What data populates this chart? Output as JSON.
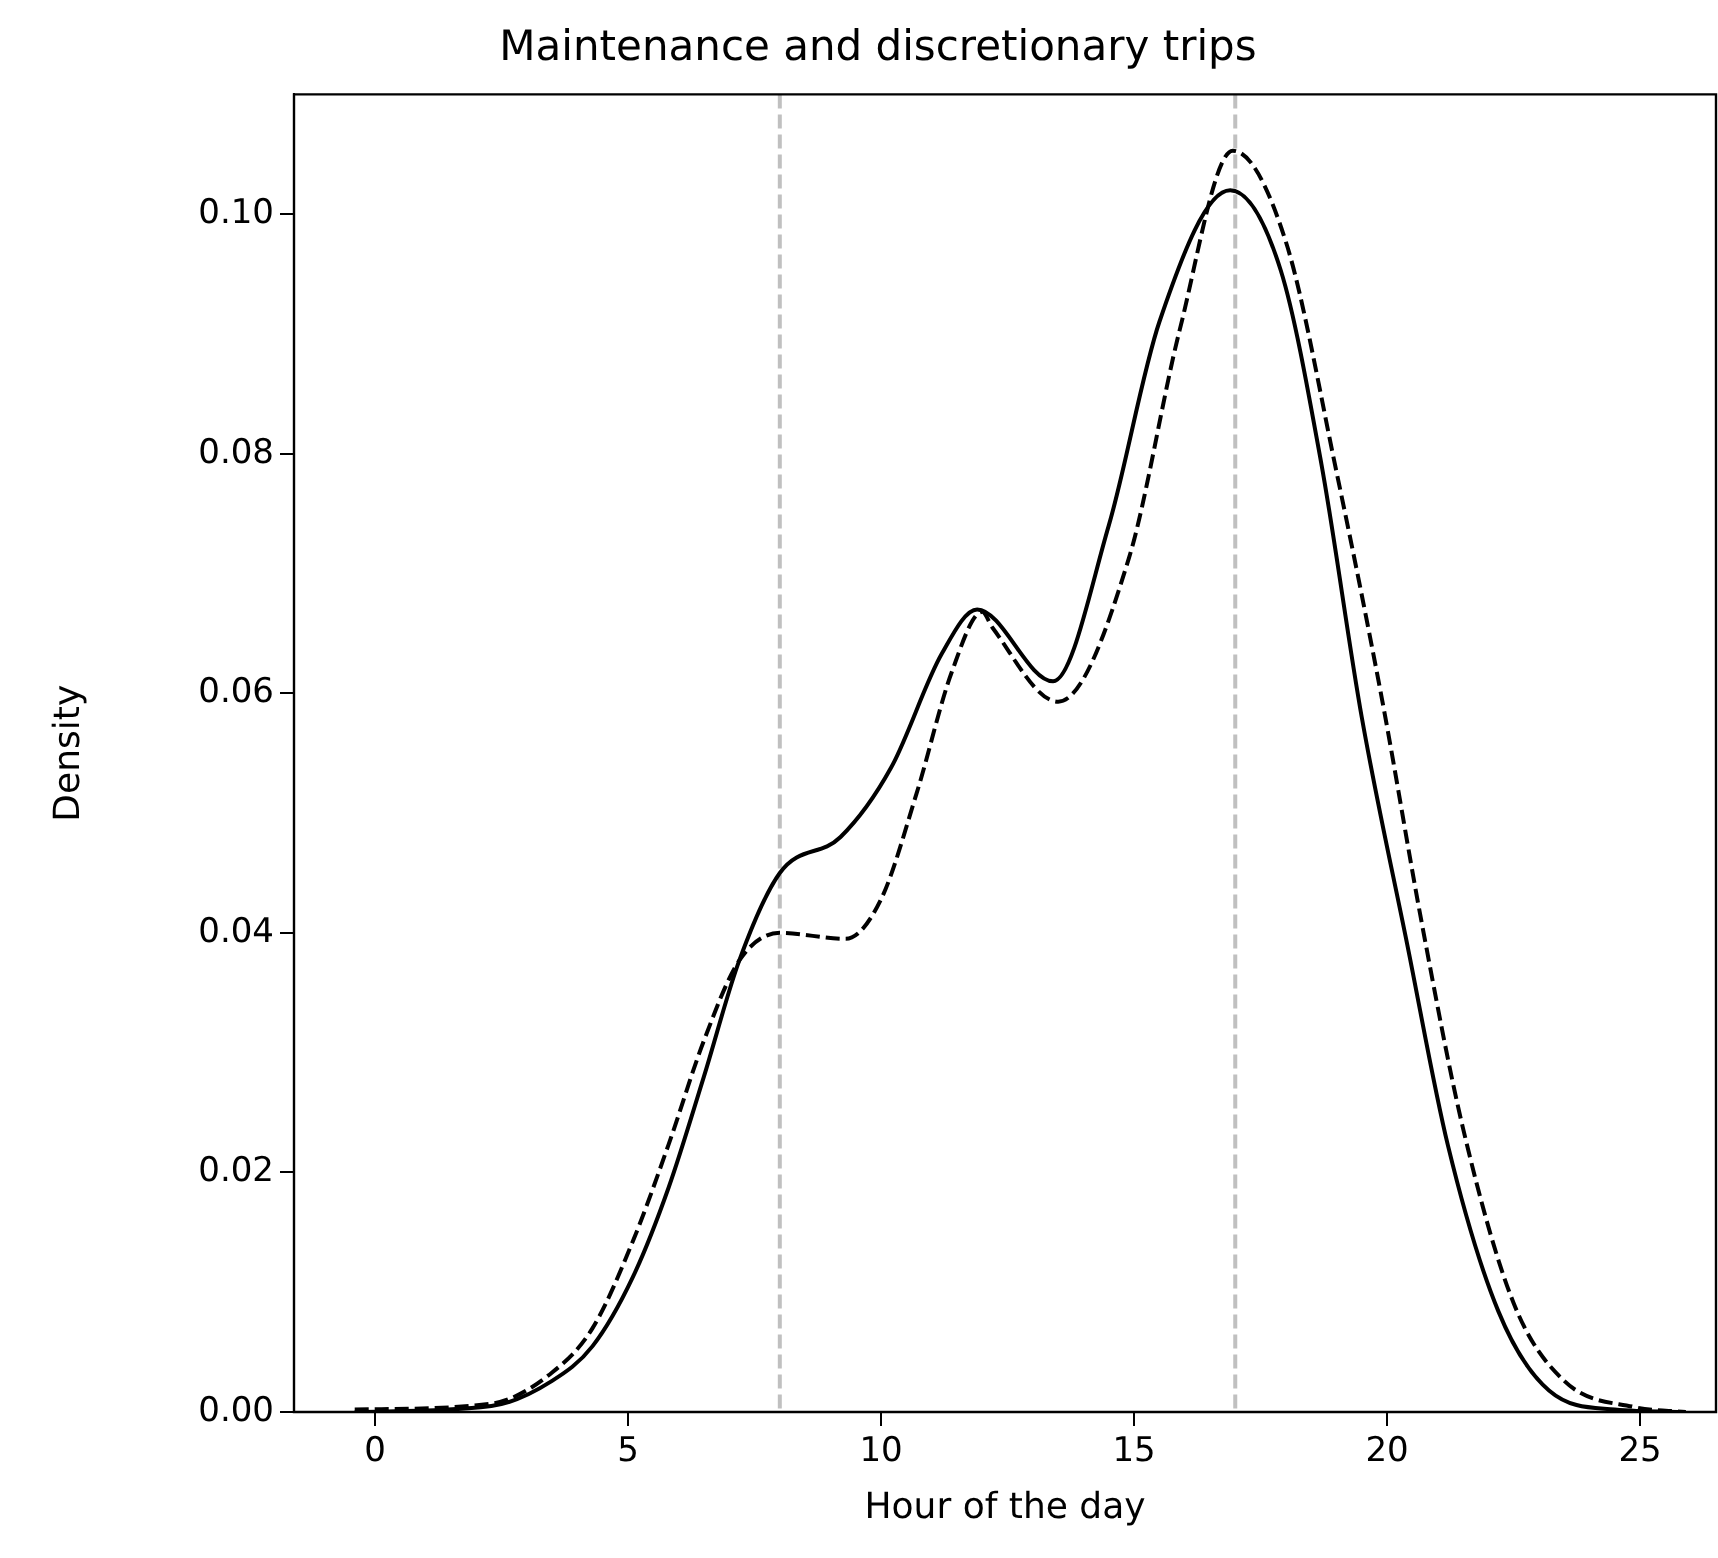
{
  "chart_data": {
    "type": "line",
    "title": "Maintenance and discretionary trips",
    "xlabel": "Hour of the day",
    "ylabel": "Density",
    "xlim": [
      -1.6,
      26.5
    ],
    "xticks": [
      0,
      5,
      10,
      15,
      20,
      25
    ],
    "ylim": [
      0,
      0.11
    ],
    "yticks": [
      {
        "value": 0,
        "label": "0.00"
      },
      {
        "value": 0.02,
        "label": "0.02"
      },
      {
        "value": 0.04,
        "label": "0.04"
      },
      {
        "value": 0.06,
        "label": "0.06"
      },
      {
        "value": 0.08,
        "label": "0.08"
      },
      {
        "value": 0.1,
        "label": "0.10"
      }
    ],
    "grid": false,
    "legend": false,
    "marker": "none",
    "ref_lines": [
      {
        "axis": "x",
        "value": 8,
        "color": "#c0c0c0",
        "line_style": "dashed"
      },
      {
        "axis": "x",
        "value": 17,
        "color": "#c0c0c0",
        "line_style": "dashed"
      }
    ],
    "series": [
      {
        "color": "#000000",
        "line_style": "solid",
        "x": [
          -0.4,
          2.3,
          3.5,
          4.3,
          5.1,
          5.8,
          6.5,
          7.2,
          8.0,
          9.2,
          10.2,
          11.2,
          11.9,
          13.4,
          14.5,
          15.5,
          16.9,
          17.9,
          18.7,
          19.5,
          20.4,
          21.2,
          22.2,
          23.2,
          24.5,
          25.9
        ],
        "values": [
          0,
          0.0005,
          0.0026,
          0.0055,
          0.0113,
          0.0187,
          0.028,
          0.0377,
          0.045,
          0.048,
          0.0538,
          0.0633,
          0.067,
          0.061,
          0.074,
          0.091,
          0.102,
          0.0953,
          0.0792,
          0.058,
          0.039,
          0.0223,
          0.0084,
          0.0018,
          0.0002,
          0
        ]
      },
      {
        "color": "#000000",
        "line_style": "dashed",
        "x": [
          -0.4,
          2.3,
          3.5,
          4.3,
          5.1,
          5.8,
          6.5,
          7.2,
          8.0,
          9.3,
          10.0,
          10.7,
          11.4,
          12.0,
          12.2,
          13.5,
          14.9,
          15.9,
          16.95,
          18.0,
          19.0,
          19.9,
          20.7,
          21.5,
          22.5,
          23.5,
          24.9,
          25.9
        ],
        "values": [
          0.0002,
          0.0007,
          0.0033,
          0.007,
          0.0143,
          0.0223,
          0.031,
          0.0377,
          0.04,
          0.0395,
          0.0428,
          0.0516,
          0.0618,
          0.0668,
          0.0655,
          0.0593,
          0.0713,
          0.0903,
          0.1053,
          0.0977,
          0.0785,
          0.0595,
          0.0405,
          0.0237,
          0.0091,
          0.0026,
          0.0004,
          0
        ]
      }
    ]
  }
}
